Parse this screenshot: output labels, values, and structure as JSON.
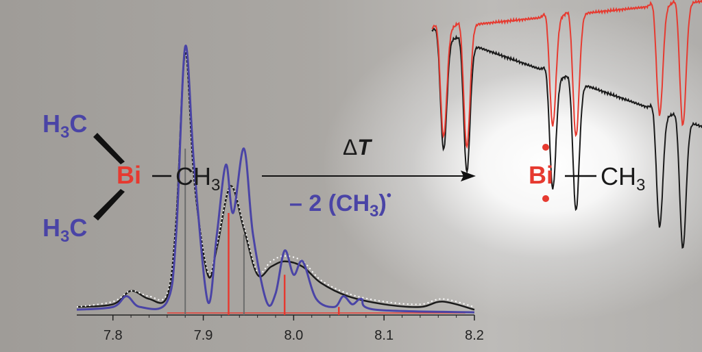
{
  "reactant": {
    "methyl_top": "H",
    "methyl_top_sub": "3",
    "methyl_top_c": "C",
    "bismuth": "Bi",
    "methyl_right": "CH",
    "methyl_right_sub": "3",
    "methyl_bottom": "H",
    "methyl_bottom_sub": "3",
    "methyl_bottom_c": "C"
  },
  "arrow": {
    "above_symbol": "Δ",
    "above_var": "T",
    "below_text": "– 2 (CH",
    "below_sub": "3",
    "below_close": ")",
    "below_radical": "•"
  },
  "product": {
    "bismuth": "Bi",
    "methyl": "CH",
    "methyl_sub": "3"
  },
  "colors": {
    "blue": "#4a44a6",
    "red": "#e63a30",
    "black": "#1a1a1a",
    "dotted": "#ffffff"
  },
  "chart_data": {
    "type": "line",
    "xlim": [
      7.76,
      8.2
    ],
    "x_ticks": [
      "7.8",
      "7.9",
      "8.0",
      "8.1",
      "8.2"
    ],
    "x_tick_values": [
      7.8,
      7.9,
      8.0,
      8.1,
      8.2
    ],
    "series": [
      {
        "color": "#4a44a6",
        "style": "solid",
        "points": [
          [
            7.76,
            0.02
          ],
          [
            7.8,
            0.03
          ],
          [
            7.815,
            0.07
          ],
          [
            7.83,
            0.03
          ],
          [
            7.86,
            0.05
          ],
          [
            7.87,
            0.3
          ],
          [
            7.88,
            1.0
          ],
          [
            7.89,
            0.55
          ],
          [
            7.905,
            0.05
          ],
          [
            7.915,
            0.3
          ],
          [
            7.925,
            0.56
          ],
          [
            7.933,
            0.38
          ],
          [
            7.945,
            0.62
          ],
          [
            7.955,
            0.3
          ],
          [
            7.97,
            0.05
          ],
          [
            7.98,
            0.08
          ],
          [
            7.99,
            0.24
          ],
          [
            8.0,
            0.15
          ],
          [
            8.01,
            0.2
          ],
          [
            8.025,
            0.06
          ],
          [
            8.045,
            0.03
          ],
          [
            8.055,
            0.07
          ],
          [
            8.065,
            0.04
          ],
          [
            8.075,
            0.06
          ],
          [
            8.09,
            0.02
          ],
          [
            8.2,
            0.01
          ]
        ]
      },
      {
        "color": "#1a1a1a",
        "style": "dash-dot",
        "points": [
          [
            7.76,
            0.03
          ],
          [
            7.8,
            0.04
          ],
          [
            7.82,
            0.09
          ],
          [
            7.84,
            0.06
          ],
          [
            7.86,
            0.07
          ],
          [
            7.87,
            0.35
          ],
          [
            7.88,
            0.98
          ],
          [
            7.89,
            0.5
          ],
          [
            7.905,
            0.15
          ],
          [
            7.915,
            0.25
          ],
          [
            7.93,
            0.48
          ],
          [
            7.945,
            0.32
          ],
          [
            7.96,
            0.15
          ],
          [
            7.975,
            0.18
          ],
          [
            7.99,
            0.2
          ],
          [
            8.01,
            0.18
          ],
          [
            8.03,
            0.12
          ],
          [
            8.06,
            0.07
          ],
          [
            8.1,
            0.04
          ],
          [
            8.14,
            0.03
          ],
          [
            8.165,
            0.05
          ],
          [
            8.2,
            0.02
          ]
        ]
      },
      {
        "color": "#ffffff",
        "style": "dotted",
        "points": [
          [
            7.76,
            0.03
          ],
          [
            7.8,
            0.05
          ],
          [
            7.82,
            0.09
          ],
          [
            7.84,
            0.07
          ],
          [
            7.86,
            0.08
          ],
          [
            7.87,
            0.35
          ],
          [
            7.88,
            0.98
          ],
          [
            7.89,
            0.5
          ],
          [
            7.905,
            0.16
          ],
          [
            7.915,
            0.26
          ],
          [
            7.93,
            0.48
          ],
          [
            7.945,
            0.33
          ],
          [
            7.96,
            0.16
          ],
          [
            7.975,
            0.2
          ],
          [
            7.99,
            0.22
          ],
          [
            8.01,
            0.2
          ],
          [
            8.03,
            0.13
          ],
          [
            8.06,
            0.08
          ],
          [
            8.1,
            0.05
          ],
          [
            8.14,
            0.04
          ],
          [
            8.165,
            0.06
          ],
          [
            8.2,
            0.03
          ]
        ]
      }
    ],
    "stick_red": [
      [
        7.928,
        0.38
      ],
      [
        7.99,
        0.15
      ],
      [
        8.05,
        0.03
      ]
    ],
    "stick_gray": [
      [
        7.88,
        0.62
      ],
      [
        7.945,
        0.3
      ]
    ]
  },
  "epr_data": {
    "type": "line",
    "x_positions": [
      0.05,
      0.15,
      0.52,
      0.62,
      0.98,
      1.08
    ],
    "series": [
      {
        "color": "#1a1a1a",
        "baseline_left": 0.0,
        "baseline_right": 0.07
      },
      {
        "color": "#e63a30",
        "baseline_left": -0.03,
        "baseline_right": -0.05
      }
    ]
  }
}
